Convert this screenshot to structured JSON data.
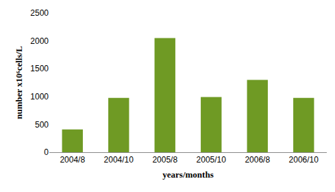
{
  "chart_data": {
    "type": "bar",
    "categories": [
      "2004/8",
      "2004/10",
      "2005/8",
      "2005/10",
      "2006/8",
      "2006/10"
    ],
    "values": [
      410,
      975,
      2050,
      990,
      1300,
      975
    ],
    "color": "#6f9a24",
    "x_label": "years/months",
    "y_label": "number x10⁶cells/L",
    "ylim": [
      0,
      2500
    ],
    "yticks": [
      0,
      500,
      1000,
      1500,
      2000,
      2500
    ],
    "grid": false
  }
}
